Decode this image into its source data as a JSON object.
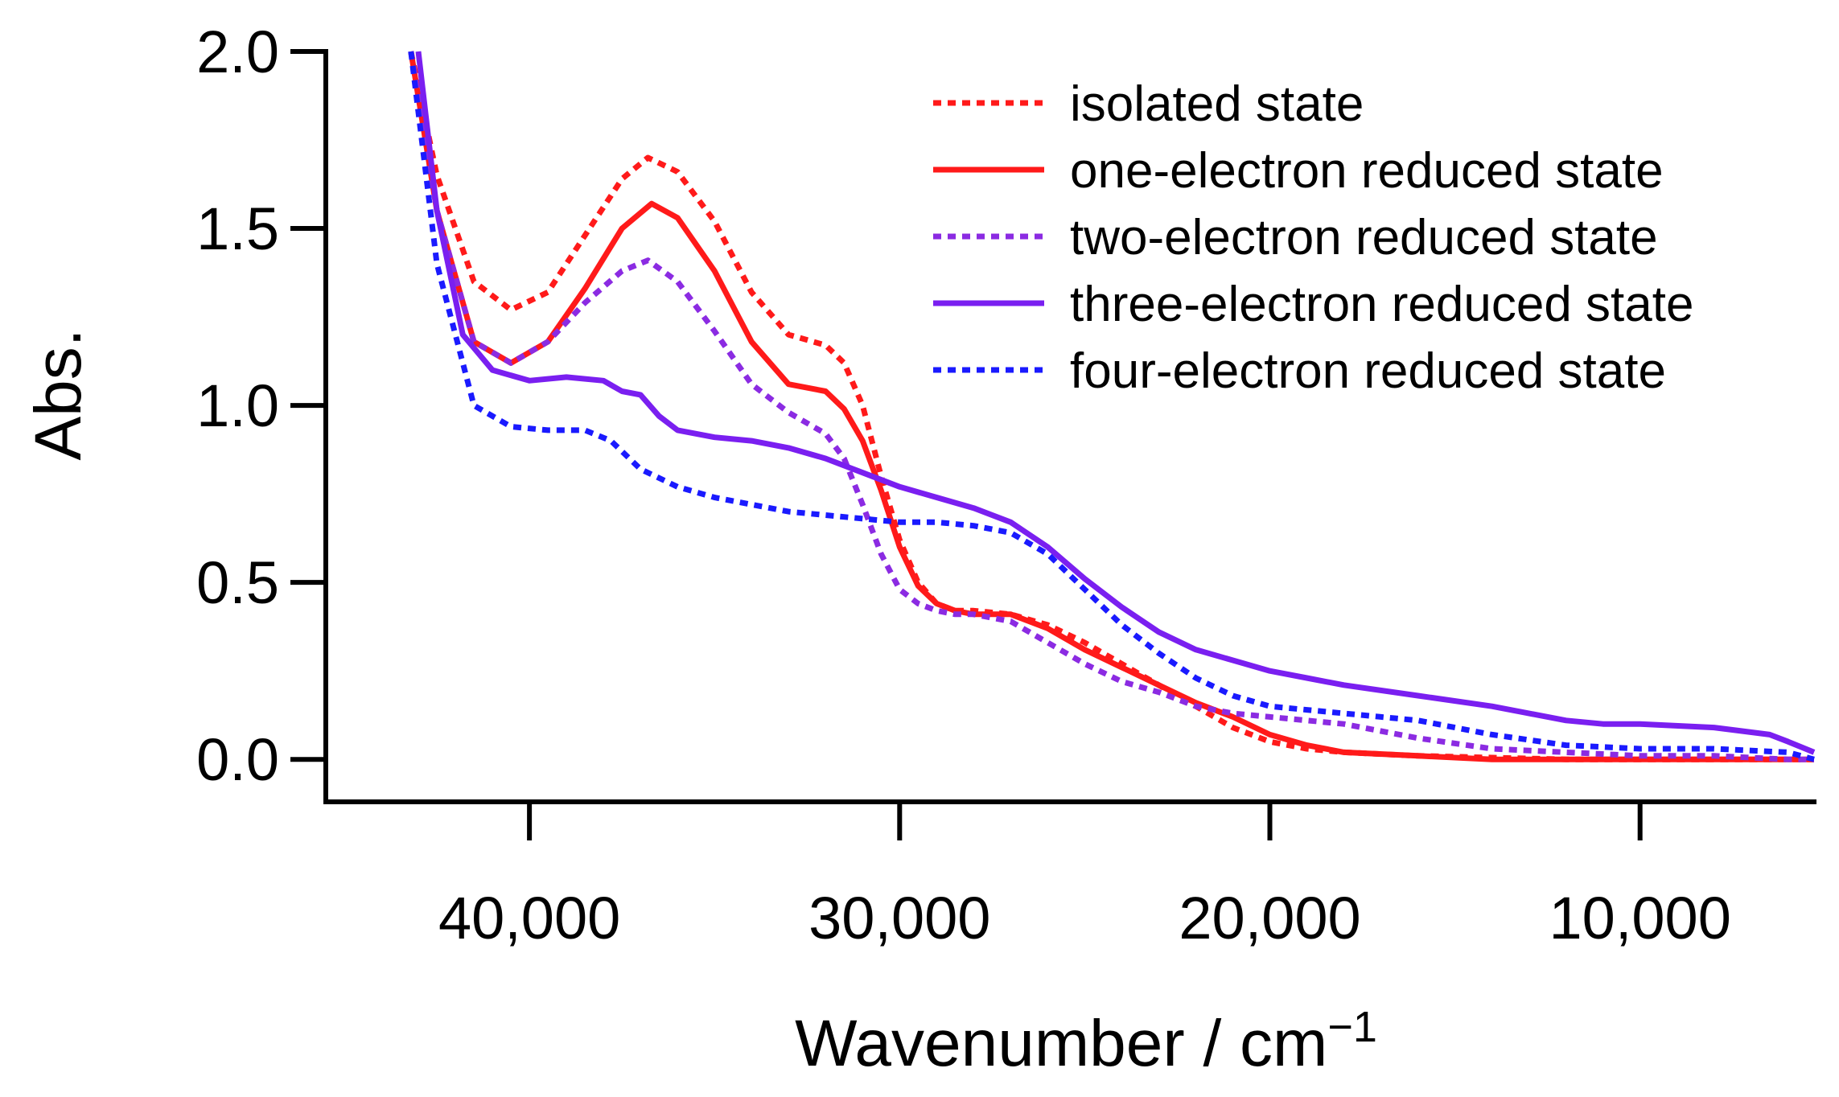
{
  "chart_data": {
    "type": "line",
    "title": "",
    "xlabel": "Wavenumber / cm",
    "xlabel_superscript": "−1",
    "ylabel": "Abs.",
    "xlim": [
      45500,
      5300
    ],
    "ylim": [
      -0.12,
      2.0
    ],
    "x_reversed": true,
    "grid": false,
    "legend_position": "top-right",
    "x_ticks": [
      40000,
      30000,
      20000,
      10000
    ],
    "x_tick_labels": [
      "40,000",
      "30,000",
      "20,000",
      "10,000"
    ],
    "y_ticks": [
      0.0,
      0.5,
      1.0,
      1.5,
      2.0
    ],
    "y_tick_labels": [
      "0.0",
      "0.5",
      "1.0",
      "1.5",
      "2.0"
    ],
    "series": [
      {
        "name": "isolated state",
        "color": "#ff1a1a",
        "dash": "dotted",
        "x": [
          43200,
          42500,
          41500,
          40500,
          39500,
          38500,
          37500,
          36800,
          36000,
          35000,
          34000,
          33000,
          32000,
          31500,
          31000,
          30500,
          30000,
          29500,
          29000,
          28500,
          28000,
          27000,
          26000,
          25000,
          24000,
          23000,
          22000,
          21000,
          20000,
          19000,
          18000,
          16000,
          14000,
          12000,
          10000,
          8000,
          6000,
          5300
        ],
        "values": [
          2.0,
          1.65,
          1.35,
          1.27,
          1.32,
          1.48,
          1.64,
          1.7,
          1.66,
          1.52,
          1.32,
          1.2,
          1.17,
          1.12,
          1.0,
          0.8,
          0.62,
          0.5,
          0.44,
          0.42,
          0.42,
          0.41,
          0.38,
          0.33,
          0.27,
          0.21,
          0.15,
          0.09,
          0.05,
          0.03,
          0.02,
          0.01,
          0.005,
          0.0,
          0.0,
          0.0,
          0.0,
          0.0
        ]
      },
      {
        "name": "one-electron reduced state",
        "color": "#ff1a1a",
        "dash": "solid",
        "x": [
          43200,
          42500,
          41500,
          40500,
          39500,
          38500,
          37500,
          36700,
          36000,
          35000,
          34000,
          33000,
          32000,
          31500,
          31000,
          30500,
          30000,
          29500,
          29000,
          28500,
          28000,
          27000,
          26000,
          25000,
          24000,
          23000,
          22000,
          21000,
          20000,
          19000,
          18000,
          16000,
          14000,
          12000,
          10000,
          8000,
          6000,
          5300
        ],
        "values": [
          2.0,
          1.55,
          1.18,
          1.12,
          1.18,
          1.33,
          1.5,
          1.57,
          1.53,
          1.38,
          1.18,
          1.06,
          1.04,
          0.99,
          0.9,
          0.76,
          0.6,
          0.49,
          0.44,
          0.42,
          0.41,
          0.41,
          0.37,
          0.31,
          0.26,
          0.21,
          0.16,
          0.12,
          0.07,
          0.04,
          0.02,
          0.01,
          0.0,
          0.0,
          0.0,
          0.0,
          0.0,
          0.0
        ]
      },
      {
        "name": "two-electron reduced state",
        "color": "#8b2be2",
        "dash": "dotted",
        "x": [
          43200,
          42500,
          41500,
          40500,
          39500,
          38500,
          37500,
          36800,
          36000,
          35000,
          34000,
          33000,
          32000,
          31500,
          31000,
          30500,
          30000,
          29500,
          29000,
          28500,
          28000,
          27000,
          26000,
          25000,
          24000,
          23000,
          22000,
          21000,
          20000,
          19000,
          18000,
          17000,
          16000,
          14000,
          12000,
          10000,
          8000,
          6000,
          5300
        ],
        "values": [
          2.0,
          1.55,
          1.18,
          1.12,
          1.18,
          1.29,
          1.38,
          1.41,
          1.35,
          1.21,
          1.06,
          0.98,
          0.92,
          0.85,
          0.72,
          0.58,
          0.48,
          0.44,
          0.42,
          0.41,
          0.41,
          0.39,
          0.33,
          0.27,
          0.22,
          0.19,
          0.15,
          0.13,
          0.12,
          0.11,
          0.1,
          0.08,
          0.06,
          0.03,
          0.02,
          0.01,
          0.01,
          0.0,
          0.0
        ]
      },
      {
        "name": "three-electron reduced state",
        "color": "#7a1ff0",
        "dash": "solid",
        "x": [
          43000,
          42500,
          41800,
          41000,
          40000,
          39000,
          38000,
          37500,
          37000,
          36500,
          36000,
          35000,
          34000,
          33000,
          32000,
          31000,
          30000,
          29000,
          28000,
          27000,
          26000,
          25000,
          24000,
          23000,
          22000,
          21000,
          20000,
          19000,
          18000,
          16000,
          14000,
          12000,
          11000,
          10000,
          8000,
          6500,
          6000,
          5300
        ],
        "values": [
          2.0,
          1.55,
          1.2,
          1.1,
          1.07,
          1.08,
          1.07,
          1.04,
          1.03,
          0.97,
          0.93,
          0.91,
          0.9,
          0.88,
          0.85,
          0.81,
          0.77,
          0.74,
          0.71,
          0.67,
          0.6,
          0.51,
          0.43,
          0.36,
          0.31,
          0.28,
          0.25,
          0.23,
          0.21,
          0.18,
          0.15,
          0.11,
          0.1,
          0.1,
          0.09,
          0.07,
          0.05,
          0.02
        ]
      },
      {
        "name": "four-electron reduced state",
        "color": "#1a1aff",
        "dash": "dotted",
        "x": [
          43200,
          42500,
          41500,
          40500,
          39500,
          38500,
          37800,
          37000,
          36000,
          35000,
          34000,
          33000,
          32000,
          31000,
          30000,
          29000,
          28000,
          27000,
          26000,
          25000,
          24000,
          23000,
          22000,
          21000,
          20000,
          19000,
          18000,
          17000,
          16000,
          15000,
          14000,
          12000,
          10000,
          8000,
          6000,
          5300
        ],
        "values": [
          2.0,
          1.4,
          1.0,
          0.94,
          0.93,
          0.93,
          0.9,
          0.82,
          0.77,
          0.74,
          0.72,
          0.7,
          0.69,
          0.68,
          0.67,
          0.67,
          0.66,
          0.64,
          0.58,
          0.48,
          0.38,
          0.3,
          0.23,
          0.18,
          0.15,
          0.14,
          0.13,
          0.12,
          0.11,
          0.09,
          0.07,
          0.04,
          0.03,
          0.03,
          0.02,
          0.0
        ]
      }
    ]
  }
}
